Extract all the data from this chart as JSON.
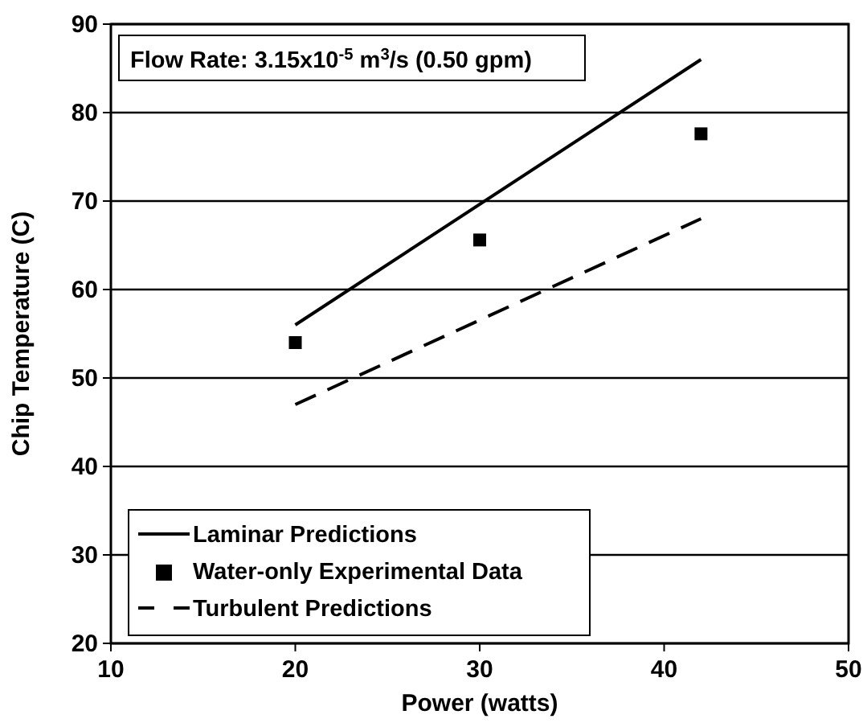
{
  "chart_data": {
    "type": "line",
    "xlabel": "Power (watts)",
    "ylabel": "Chip Temperature (C)",
    "annotations": [
      "Flow Rate: 3.15x10$^{-5}$ m$^{3}$/s (0.50 gpm)"
    ],
    "xlim": [
      10,
      50
    ],
    "xticks": [
      10,
      20,
      30,
      40,
      50
    ],
    "ylim": [
      20,
      90
    ],
    "yticks": [
      20,
      30,
      40,
      50,
      60,
      70,
      80,
      90
    ],
    "grid": "y",
    "legend": "bottom left",
    "series": [
      {
        "name": "Laminar Predictions",
        "color": "#000000",
        "line_style": "solid",
        "x": [
          20,
          42
        ],
        "values": [
          56,
          86
        ]
      },
      {
        "name": "Water-only Experimental Data",
        "color": "#000000",
        "type": "scatter",
        "marker": "square",
        "x": [
          20,
          30,
          42
        ],
        "values": [
          54,
          65.6,
          77.6
        ]
      },
      {
        "name": "Turbulent Predictions",
        "color": "#000000",
        "line_style": "dashed",
        "x": [
          20,
          42
        ],
        "values": [
          47,
          68
        ]
      }
    ]
  }
}
